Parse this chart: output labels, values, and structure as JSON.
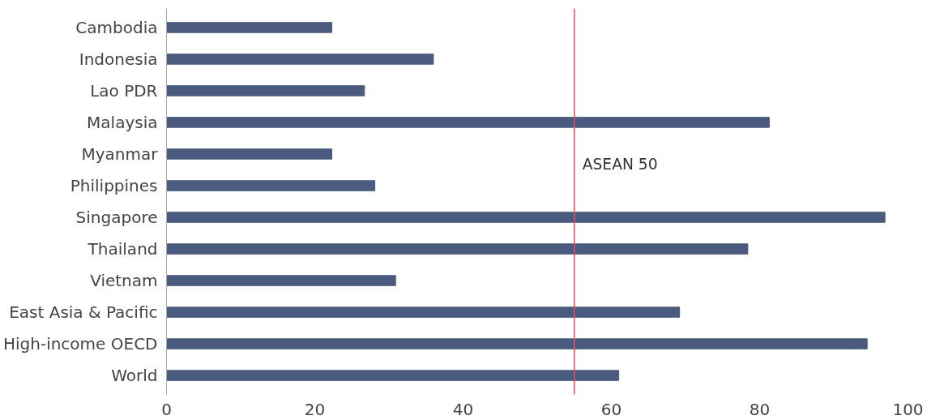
{
  "chart_data": {
    "type": "bar",
    "orientation": "horizontal",
    "categories": [
      "Cambodia",
      "Indonesia",
      "Lao PDR",
      "Malaysia",
      "Myanmar",
      "Philippines",
      "Singapore",
      "Thailand",
      "Vietnam",
      "East Asia & Pacific",
      "High-income OECD",
      "World"
    ],
    "values": [
      22.3,
      36,
      26.7,
      81.3,
      22.3,
      28.1,
      96.9,
      78.4,
      30.9,
      69.2,
      94.5,
      61
    ],
    "color": "#4b5a7f",
    "xlim": [
      0,
      100
    ],
    "xticks": [
      0,
      20,
      40,
      60,
      80,
      100
    ],
    "grid": false,
    "ref_lines": [
      {
        "axis": "x",
        "value": 55,
        "label": "ASEAN 50",
        "color": "#e0505f"
      }
    ]
  }
}
